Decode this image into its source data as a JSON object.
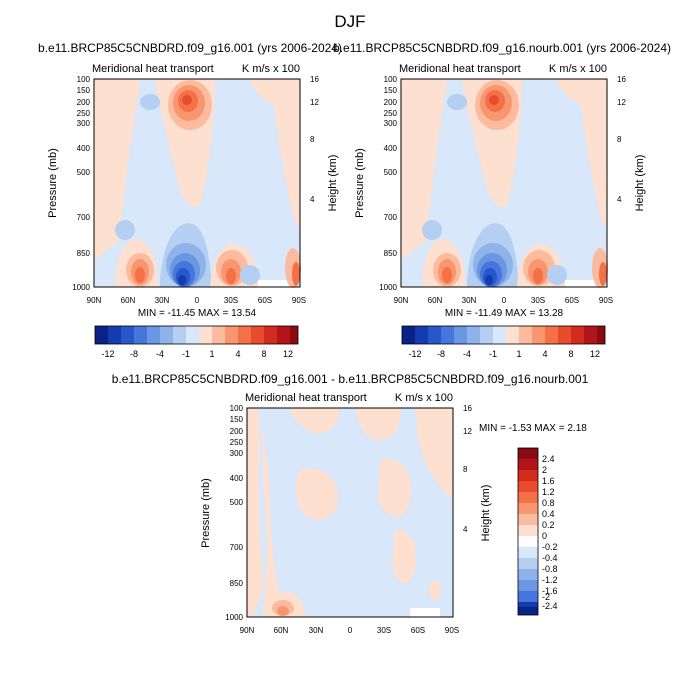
{
  "figure": {
    "title": "DJF"
  },
  "colors": {
    "positive": [
      "#fde0cf",
      "#fcbb9e",
      "#f9966f",
      "#f47046",
      "#e94c2c",
      "#d32c1e",
      "#b1151b",
      "#8a0b12"
    ],
    "negative": [
      "#d8e7f9",
      "#b5cff2",
      "#8db3ea",
      "#6a97e2",
      "#4676db",
      "#2758c9",
      "#143bb0",
      "#0a2188"
    ],
    "zero": "#ffffff"
  },
  "chart_data": [
    {
      "type": "contour",
      "id": "top-left",
      "title": "b.e11.BRCP85C5CNBDRD.f09_g16.001 (yrs 2006-2024)",
      "left_label": "Meridional heat transport",
      "right_label": "K m/s x 100",
      "ylabel": "Pressure (mb)",
      "ylabel_right": "Height (km)",
      "x_ticks": [
        "90N",
        "60N",
        "30N",
        "0",
        "30S",
        "60S",
        "90S"
      ],
      "y_ticks": [
        "100",
        "150",
        "200",
        "250",
        "300",
        "400",
        "500",
        "700",
        "850",
        "1000"
      ],
      "y_ticks_right": [
        "16",
        "12",
        "8",
        "4"
      ],
      "ylim": [
        1000,
        100
      ],
      "minmax_text": "MIN = -11.45   MAX =  13.54",
      "min": -11.45,
      "max": 13.54,
      "colorbar": {
        "orientation": "horizontal",
        "levels": [
          "-12",
          "-8",
          "-4",
          "-1",
          "1",
          "4",
          "8",
          "12"
        ]
      },
      "features": [
        {
          "lat": 15,
          "p": 200,
          "value": 12
        },
        {
          "lat": -5,
          "p": 920,
          "value": -11
        },
        {
          "lat": 60,
          "p": 900,
          "value": 5
        },
        {
          "lat": 40,
          "p": 900,
          "value": 2
        },
        {
          "lat": -35,
          "p": 900,
          "value": 6
        },
        {
          "lat": -80,
          "p": 920,
          "value": 4
        },
        {
          "lat": 45,
          "p": 180,
          "value": -2
        }
      ]
    },
    {
      "type": "contour",
      "id": "top-right",
      "title": "b.e11.BRCP85C5CNBDRD.f09_g16.nourb.001 (yrs 2006-2024)",
      "left_label": "Meridional heat transport",
      "right_label": "K m/s x 100",
      "ylabel": "Pressure (mb)",
      "ylabel_right": "Height (km)",
      "x_ticks": [
        "90N",
        "60N",
        "30N",
        "0",
        "30S",
        "60S",
        "90S"
      ],
      "y_ticks": [
        "100",
        "150",
        "200",
        "250",
        "300",
        "400",
        "500",
        "700",
        "850",
        "1000"
      ],
      "y_ticks_right": [
        "16",
        "12",
        "8",
        "4"
      ],
      "ylim": [
        1000,
        100
      ],
      "minmax_text": "MIN = -11.49   MAX =  13.28",
      "min": -11.49,
      "max": 13.28,
      "colorbar": {
        "orientation": "horizontal",
        "levels": [
          "-12",
          "-8",
          "-4",
          "-1",
          "1",
          "4",
          "8",
          "12"
        ]
      },
      "features": [
        {
          "lat": 15,
          "p": 200,
          "value": 12
        },
        {
          "lat": -5,
          "p": 920,
          "value": -11
        },
        {
          "lat": 60,
          "p": 900,
          "value": 5
        },
        {
          "lat": 40,
          "p": 900,
          "value": 2
        },
        {
          "lat": -35,
          "p": 900,
          "value": 6
        },
        {
          "lat": -80,
          "p": 920,
          "value": 4
        },
        {
          "lat": 45,
          "p": 180,
          "value": -2
        }
      ]
    },
    {
      "type": "contour",
      "id": "difference",
      "title": "b.e11.BRCP85C5CNBDRD.f09_g16.001 - b.e11.BRCP85C5CNBDRD.f09_g16.nourb.001",
      "left_label": "Meridional heat transport",
      "right_label": "K m/s x 100",
      "ylabel": "Pressure (mb)",
      "ylabel_right": "Height (km)",
      "x_ticks": [
        "90N",
        "60N",
        "30N",
        "0",
        "30S",
        "60S",
        "90S"
      ],
      "y_ticks": [
        "100",
        "150",
        "200",
        "250",
        "300",
        "400",
        "500",
        "700",
        "850",
        "1000"
      ],
      "y_ticks_right": [
        "16",
        "12",
        "8",
        "4"
      ],
      "ylim": [
        1000,
        100
      ],
      "minmax_text": "MIN = -1.53   MAX =   2.18",
      "min": -1.53,
      "max": 2.18,
      "colorbar": {
        "orientation": "vertical",
        "levels": [
          "2.4",
          "2",
          "1.6",
          "1.2",
          "0.8",
          "0.4",
          "0.2",
          "0",
          "-0.2",
          "-0.4",
          "-0.8",
          "-1.2",
          "-1.6",
          "-2",
          "-2.4"
        ]
      },
      "features": [
        {
          "lat": 60,
          "p": 970,
          "value": 1.6
        },
        {
          "lat": 50,
          "p": 600,
          "value": 0.1
        },
        {
          "lat": -20,
          "p": 300,
          "value": 0.1
        }
      ]
    }
  ]
}
